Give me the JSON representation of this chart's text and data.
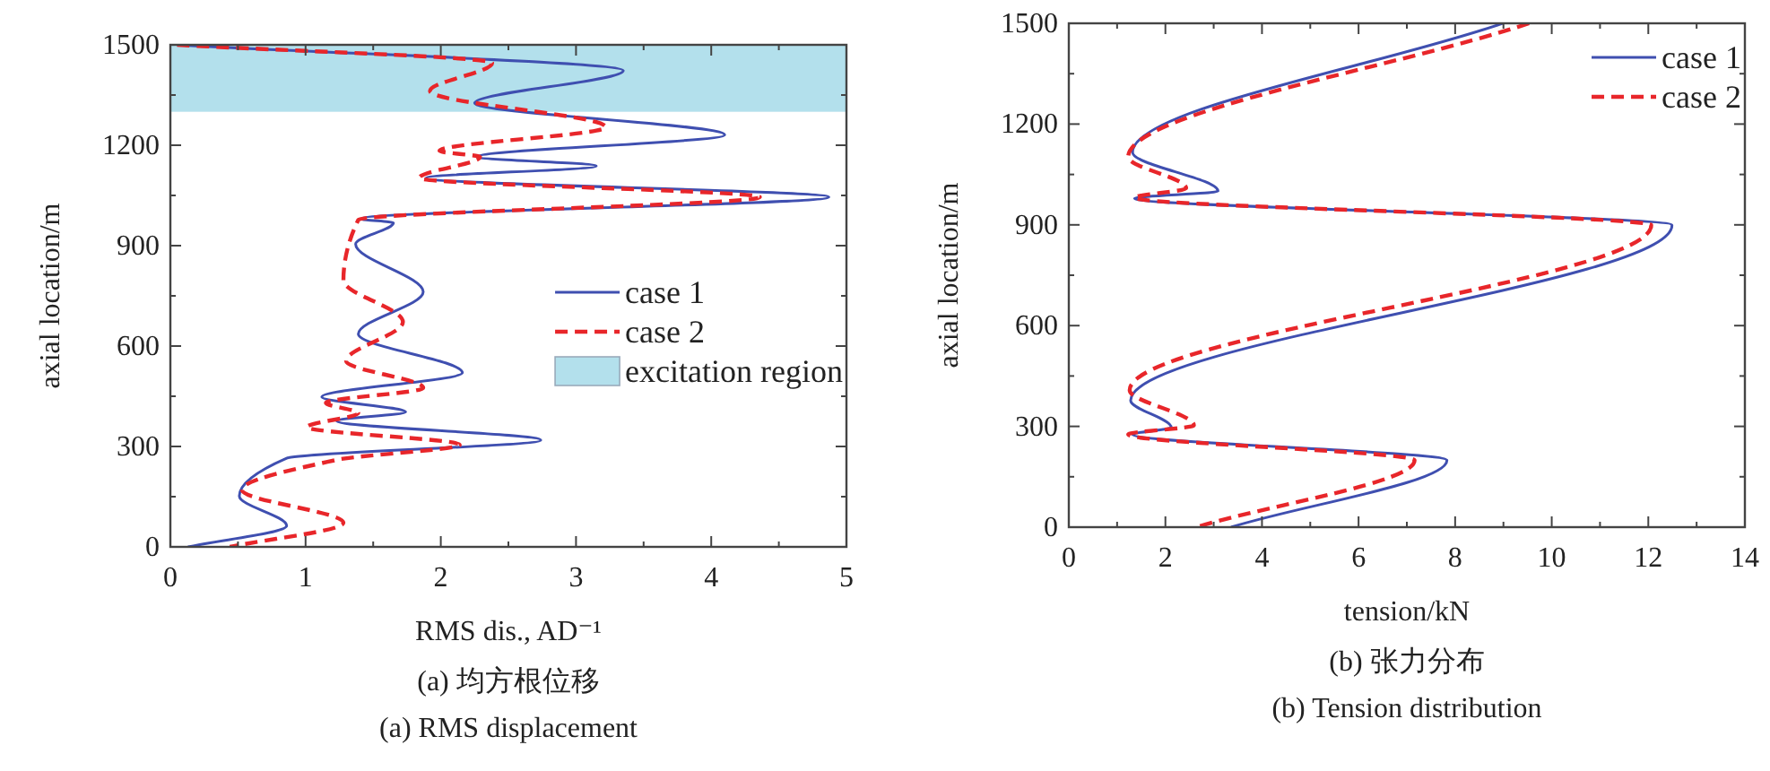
{
  "chart_data": [
    {
      "type": "line",
      "xlabel": "RMS dis., AD⁻¹",
      "ylabel": "axial location/m",
      "annotations": [
        "(a) 均方根位移",
        "(a) RMS displacement"
      ],
      "xlim": [
        0,
        5
      ],
      "xticks": [
        0,
        1,
        2,
        3,
        4,
        5
      ],
      "ylim": [
        0,
        1500
      ],
      "yticks": [
        0,
        300,
        600,
        900,
        1200,
        1500
      ],
      "legend": "right",
      "grid": false,
      "bands": [
        {
          "axis": "y",
          "from": 1300,
          "to": 1500,
          "label": "excitation region",
          "color": "#b3e0ec"
        }
      ],
      "series": [
        {
          "name": "case 1",
          "color": "#3f4fb0",
          "line_style": "solid",
          "x": [
            0.05,
            3.35,
            2.25,
            4.1,
            2.27,
            3.15,
            1.89,
            4.87,
            1.41,
            1.65,
            1.37,
            1.87,
            1.39,
            2.16,
            1.12,
            1.74,
            1.23,
            2.74,
            0.86,
            0.51,
            0.86,
            0.13
          ],
          "values": [
            1500,
            1423,
            1326,
            1231,
            1165,
            1138,
            1102,
            1045,
            980,
            968,
            905,
            762,
            636,
            520,
            448,
            403,
            376,
            319,
            265,
            152,
            63,
            0
          ]
        },
        {
          "name": "case 2",
          "color": "#e8262a",
          "line_style": "dashed",
          "x": [
            0.05,
            2.38,
            1.92,
            3.22,
            1.99,
            2.29,
            1.84,
            4.36,
            1.39,
            1.28,
            1.72,
            1.3,
            1.87,
            1.15,
            1.39,
            1.01,
            2.14,
            1.23,
            0.53,
            1.28,
            0.44
          ],
          "values": [
            1500,
            1446,
            1362,
            1254,
            1183,
            1165,
            1102,
            1045,
            977,
            797,
            672,
            555,
            475,
            430,
            400,
            358,
            305,
            260,
            170,
            72,
            0
          ]
        }
      ]
    },
    {
      "type": "line",
      "xlabel": "tension/kN",
      "ylabel": "axial location/m",
      "annotations": [
        "(b) 张力分布",
        "(b) Tension distribution"
      ],
      "xlim": [
        0,
        14
      ],
      "xticks": [
        0,
        2,
        4,
        6,
        8,
        10,
        12,
        14
      ],
      "ylim": [
        0,
        1500
      ],
      "yticks": [
        0,
        300,
        600,
        900,
        1200,
        1500
      ],
      "legend": "top right",
      "grid": false,
      "series": [
        {
          "name": "case 1",
          "color": "#3f4fb0",
          "line_style": "solid",
          "x": [
            8.98,
            1.32,
            3.09,
            1.36,
            12.49,
            1.28,
            2.12,
            1.32,
            7.83,
            3.36
          ],
          "values": [
            1500,
            1116,
            1000,
            979,
            899,
            377,
            297,
            276,
            199,
            0
          ]
        },
        {
          "name": "case 2",
          "color": "#e8262a",
          "line_style": "dashed",
          "x": [
            9.53,
            1.23,
            2.43,
            1.36,
            12.06,
            1.26,
            2.59,
            1.23,
            7.16,
            2.64
          ],
          "values": [
            1500,
            1102,
            1009,
            981,
            899,
            408,
            303,
            276,
            199,
            0
          ]
        }
      ]
    }
  ]
}
